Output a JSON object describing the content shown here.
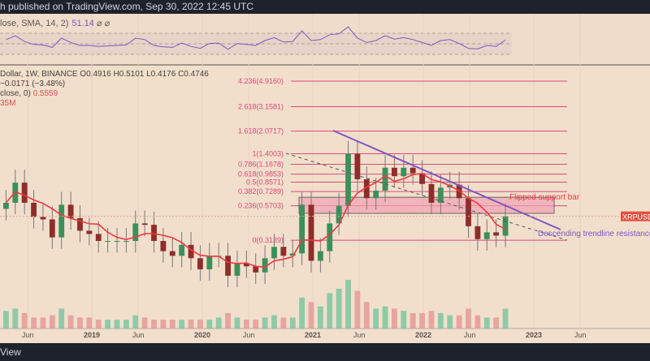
{
  "header": {
    "publisher_text": "h published on TradingView.com, Sep 30, 2022 12:45 UTC"
  },
  "footer": {
    "brand": "View"
  },
  "rsi": {
    "label": "lose, SMA, 14, 2)",
    "value": "51.14",
    "icons": "⌀ ⌀"
  },
  "legend": {
    "symbol": "Dollar, 1W, BINANCE",
    "open": "O0.4916",
    "high": "H0.5101",
    "low": "L0.4176",
    "close": "C0.4746",
    "change": "−0.0171 (−3.48%)",
    "ma_label": "close, 0)",
    "ma_value": "0.5559",
    "volume": "35M"
  },
  "colors": {
    "up": "#3d8f5b",
    "down": "#8e2d2a",
    "fib": "#e0487a",
    "ma": "#f23645",
    "trend": "#7e57c2",
    "bg": "#f1dfcc"
  },
  "chart_data": {
    "type": "candlestick",
    "title": "XRPUSD, 1W, BINANCE",
    "scale": "log",
    "x_ticks": [
      "Jun",
      "2019",
      "Jun",
      "2020",
      "Jun",
      "2021",
      "Jun",
      "2022",
      "Jun",
      "2023",
      "Jun"
    ],
    "x_tick_years": [
      2018.42,
      2019,
      2019.42,
      2020,
      2020.42,
      2021,
      2021.42,
      2022,
      2022.42,
      2023,
      2023.42
    ],
    "start_year": 2018.17,
    "period": "monthly-approx",
    "closes": [
      0.6,
      0.85,
      0.6,
      0.47,
      0.45,
      0.33,
      0.58,
      0.46,
      0.37,
      0.35,
      0.31,
      0.31,
      0.31,
      0.31,
      0.42,
      0.41,
      0.31,
      0.26,
      0.24,
      0.29,
      0.23,
      0.19,
      0.24,
      0.24,
      0.17,
      0.21,
      0.2,
      0.18,
      0.23,
      0.28,
      0.24,
      0.25,
      0.58,
      0.22,
      0.26,
      0.42,
      0.57,
      1.4,
      0.9,
      0.65,
      0.74,
      1.1,
      0.95,
      1.1,
      1.0,
      0.83,
      0.6,
      0.78,
      0.82,
      0.65,
      0.4,
      0.32,
      0.36,
      0.34,
      0.4746
    ],
    "volumes": [
      8,
      9,
      7,
      5,
      5,
      6,
      9,
      6,
      5,
      5,
      4,
      4,
      4,
      4,
      6,
      5,
      4,
      4,
      4,
      4,
      4,
      4,
      4,
      5,
      7,
      5,
      4,
      4,
      5,
      6,
      5,
      5,
      14,
      12,
      10,
      16,
      18,
      22,
      17,
      12,
      9,
      10,
      9,
      8,
      7,
      7,
      8,
      7,
      6,
      6,
      9,
      6,
      5,
      5,
      9
    ],
    "rsi": [
      52,
      60,
      48,
      42,
      41,
      36,
      55,
      46,
      40,
      40,
      38,
      39,
      40,
      41,
      55,
      52,
      40,
      37,
      36,
      45,
      38,
      34,
      44,
      45,
      32,
      44,
      42,
      40,
      50,
      56,
      47,
      48,
      70,
      50,
      52,
      62,
      64,
      78,
      55,
      46,
      50,
      60,
      53,
      56,
      52,
      46,
      40,
      50,
      52,
      44,
      34,
      33,
      40,
      38,
      51
    ],
    "fib_levels": [
      {
        "label": "4.236(4.9160)",
        "price": 4.916
      },
      {
        "label": "2.618(3.1581)",
        "price": 3.1581
      },
      {
        "label": "1.618(2.0717)",
        "price": 2.0717
      },
      {
        "label": "1(1.4003)",
        "price": 1.4003
      },
      {
        "label": "0.786(1.1678)",
        "price": 1.1678
      },
      {
        "label": "0.618(0.9853)",
        "price": 0.9853
      },
      {
        "label": "0.5(0.8571)",
        "price": 0.8571
      },
      {
        "label": "0.382(0.7289)",
        "price": 0.7289
      },
      {
        "label": "0.236(0.5703)",
        "price": 0.5703
      },
      {
        "label": "0(0.3139)",
        "price": 0.3139
      }
    ],
    "annotations": [
      {
        "text": "Flipped support bar"
      },
      {
        "text": "Descending trendline resistance"
      }
    ],
    "price_tag": "XRPUSD",
    "last_price": 0.4746
  }
}
